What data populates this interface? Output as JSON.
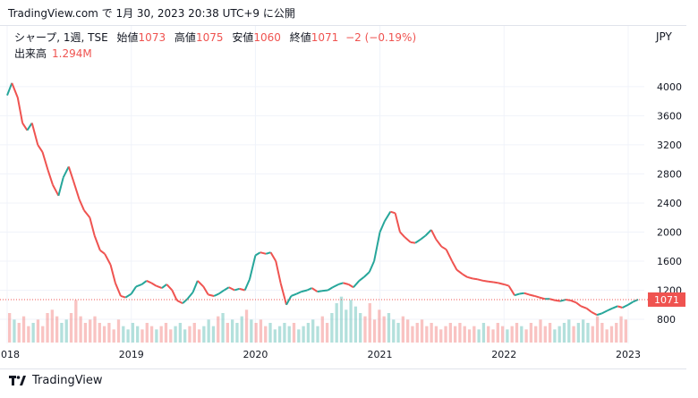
{
  "header": {
    "text": "TradingView.com で 1月 30, 2023 20:38 UTC+9 に公開"
  },
  "legend": {
    "symbol": "シャープ, 1週, TSE",
    "open_label": "始値",
    "open": "1073",
    "high_label": "高値",
    "high": "1075",
    "low_label": "安値",
    "low": "1060",
    "close_label": "終値",
    "close": "1071",
    "change": "−2 (−0.19%)",
    "volume_label": "出来高",
    "volume": "1.294M"
  },
  "footer": {
    "brand": "TradingView"
  },
  "colors": {
    "up": "#26a69a",
    "down": "#ef5350",
    "grid": "#f0f3fa",
    "price_line": "#ef5350"
  },
  "chart_data": {
    "type": "line",
    "description_series": "weekly closing price (approx.)",
    "unit": "JPY",
    "y_ticks": [
      "4000",
      "3600",
      "3200",
      "2800",
      "2400",
      "2000",
      "1600",
      "1200",
      "800"
    ],
    "x_ticks": [
      "2018",
      "2019",
      "2020",
      "2021",
      "2022",
      "2023"
    ],
    "ylim": [
      480,
      4380
    ],
    "last_price": "1071",
    "series": [
      {
        "points": [
          [
            "2018-01-01",
            3880
          ],
          [
            "2018-01-15",
            4050
          ],
          [
            "2018-02-01",
            3850
          ],
          [
            "2018-02-15",
            3500
          ],
          [
            "2018-03-01",
            3400
          ],
          [
            "2018-03-15",
            3500
          ],
          [
            "2018-04-01",
            3200
          ],
          [
            "2018-04-15",
            3100
          ],
          [
            "2018-05-01",
            2850
          ],
          [
            "2018-05-15",
            2650
          ],
          [
            "2018-06-01",
            2500
          ],
          [
            "2018-06-15",
            2750
          ],
          [
            "2018-07-01",
            2900
          ],
          [
            "2018-07-15",
            2700
          ],
          [
            "2018-08-01",
            2450
          ],
          [
            "2018-08-15",
            2300
          ],
          [
            "2018-09-01",
            2200
          ],
          [
            "2018-09-15",
            1950
          ],
          [
            "2018-10-01",
            1750
          ],
          [
            "2018-10-15",
            1700
          ],
          [
            "2018-11-01",
            1550
          ],
          [
            "2018-11-15",
            1300
          ],
          [
            "2018-12-01",
            1120
          ],
          [
            "2018-12-15",
            1100
          ],
          [
            "2019-01-01",
            1150
          ],
          [
            "2019-01-15",
            1250
          ],
          [
            "2019-02-01",
            1280
          ],
          [
            "2019-02-15",
            1330
          ],
          [
            "2019-03-01",
            1300
          ],
          [
            "2019-03-15",
            1260
          ],
          [
            "2019-04-01",
            1230
          ],
          [
            "2019-04-15",
            1280
          ],
          [
            "2019-05-01",
            1200
          ],
          [
            "2019-05-15",
            1060
          ],
          [
            "2019-06-01",
            1020
          ],
          [
            "2019-06-15",
            1080
          ],
          [
            "2019-07-01",
            1170
          ],
          [
            "2019-07-15",
            1330
          ],
          [
            "2019-08-01",
            1250
          ],
          [
            "2019-08-15",
            1140
          ],
          [
            "2019-09-01",
            1120
          ],
          [
            "2019-09-15",
            1150
          ],
          [
            "2019-10-01",
            1200
          ],
          [
            "2019-10-15",
            1240
          ],
          [
            "2019-11-01",
            1200
          ],
          [
            "2019-11-15",
            1220
          ],
          [
            "2019-12-01",
            1200
          ],
          [
            "2019-12-15",
            1350
          ],
          [
            "2020-01-01",
            1680
          ],
          [
            "2020-01-15",
            1720
          ],
          [
            "2020-02-01",
            1700
          ],
          [
            "2020-02-15",
            1720
          ],
          [
            "2020-03-01",
            1600
          ],
          [
            "2020-03-15",
            1300
          ],
          [
            "2020-04-01",
            1000
          ],
          [
            "2020-04-15",
            1120
          ],
          [
            "2020-05-01",
            1150
          ],
          [
            "2020-05-15",
            1180
          ],
          [
            "2020-06-01",
            1200
          ],
          [
            "2020-06-15",
            1230
          ],
          [
            "2020-07-01",
            1180
          ],
          [
            "2020-07-15",
            1190
          ],
          [
            "2020-08-01",
            1200
          ],
          [
            "2020-08-15",
            1240
          ],
          [
            "2020-09-01",
            1280
          ],
          [
            "2020-09-15",
            1300
          ],
          [
            "2020-10-01",
            1280
          ],
          [
            "2020-10-15",
            1240
          ],
          [
            "2020-11-01",
            1330
          ],
          [
            "2020-11-15",
            1380
          ],
          [
            "2020-12-01",
            1450
          ],
          [
            "2020-12-15",
            1600
          ],
          [
            "2021-01-01",
            2000
          ],
          [
            "2021-01-15",
            2150
          ],
          [
            "2021-02-01",
            2280
          ],
          [
            "2021-02-15",
            2260
          ],
          [
            "2021-03-01",
            2000
          ],
          [
            "2021-03-15",
            1930
          ],
          [
            "2021-04-01",
            1860
          ],
          [
            "2021-04-15",
            1850
          ],
          [
            "2021-05-01",
            1900
          ],
          [
            "2021-05-15",
            1950
          ],
          [
            "2021-06-01",
            2030
          ],
          [
            "2021-06-15",
            1900
          ],
          [
            "2021-07-01",
            1800
          ],
          [
            "2021-07-15",
            1760
          ],
          [
            "2021-08-01",
            1600
          ],
          [
            "2021-08-15",
            1480
          ],
          [
            "2021-09-01",
            1420
          ],
          [
            "2021-09-15",
            1380
          ],
          [
            "2021-10-01",
            1360
          ],
          [
            "2021-10-15",
            1350
          ],
          [
            "2021-11-01",
            1330
          ],
          [
            "2021-11-15",
            1320
          ],
          [
            "2021-12-01",
            1310
          ],
          [
            "2021-12-15",
            1300
          ],
          [
            "2022-01-01",
            1280
          ],
          [
            "2022-01-15",
            1260
          ],
          [
            "2022-02-01",
            1130
          ],
          [
            "2022-02-15",
            1150
          ],
          [
            "2022-03-01",
            1160
          ],
          [
            "2022-03-15",
            1140
          ],
          [
            "2022-04-01",
            1120
          ],
          [
            "2022-04-15",
            1100
          ],
          [
            "2022-05-01",
            1080
          ],
          [
            "2022-05-15",
            1080
          ],
          [
            "2022-06-01",
            1060
          ],
          [
            "2022-06-15",
            1050
          ],
          [
            "2022-07-01",
            1070
          ],
          [
            "2022-07-15",
            1060
          ],
          [
            "2022-08-01",
            1030
          ],
          [
            "2022-08-15",
            980
          ],
          [
            "2022-09-01",
            950
          ],
          [
            "2022-09-15",
            900
          ],
          [
            "2022-10-01",
            860
          ],
          [
            "2022-10-15",
            880
          ],
          [
            "2022-11-01",
            920
          ],
          [
            "2022-11-15",
            950
          ],
          [
            "2022-12-01",
            980
          ],
          [
            "2022-12-15",
            960
          ],
          [
            "2023-01-01",
            1000
          ],
          [
            "2023-01-15",
            1040
          ],
          [
            "2023-01-30",
            1071
          ]
        ]
      }
    ],
    "volume_series": {
      "name": "出来高",
      "values": [
        0.9,
        0.7,
        0.6,
        0.8,
        0.5,
        0.6,
        0.7,
        0.5,
        0.9,
        1.0,
        0.8,
        0.6,
        0.7,
        0.9,
        1.3,
        0.8,
        0.6,
        0.7,
        0.8,
        0.6,
        0.5,
        0.6,
        0.4,
        0.7,
        0.5,
        0.4,
        0.6,
        0.5,
        0.4,
        0.6,
        0.5,
        0.4,
        0.5,
        0.6,
        0.4,
        0.5,
        0.6,
        0.4,
        0.5,
        0.6,
        0.4,
        0.5,
        0.7,
        0.5,
        0.8,
        0.9,
        0.6,
        0.7,
        0.6,
        0.8,
        1.0,
        0.7,
        0.6,
        0.7,
        0.5,
        0.6,
        0.4,
        0.5,
        0.6,
        0.5,
        0.6,
        0.4,
        0.5,
        0.6,
        0.7,
        0.5,
        0.8,
        0.6,
        0.9,
        1.2,
        1.4,
        1.0,
        1.3,
        1.1,
        0.9,
        0.8,
        1.2,
        0.7,
        1.0,
        0.8,
        0.9,
        0.7,
        0.6,
        0.8,
        0.7,
        0.5,
        0.6,
        0.7,
        0.5,
        0.6,
        0.5,
        0.4,
        0.5,
        0.6,
        0.5,
        0.6,
        0.5,
        0.4,
        0.5,
        0.4,
        0.6,
        0.5,
        0.4,
        0.6,
        0.5,
        0.4,
        0.5,
        0.6,
        0.5,
        0.4,
        0.6,
        0.5,
        0.7,
        0.5,
        0.6,
        0.4,
        0.5,
        0.6,
        0.7,
        0.5,
        0.6,
        0.7,
        0.6,
        0.5,
        0.8,
        0.6,
        0.4,
        0.5,
        0.6,
        0.8,
        0.7
      ]
    }
  }
}
